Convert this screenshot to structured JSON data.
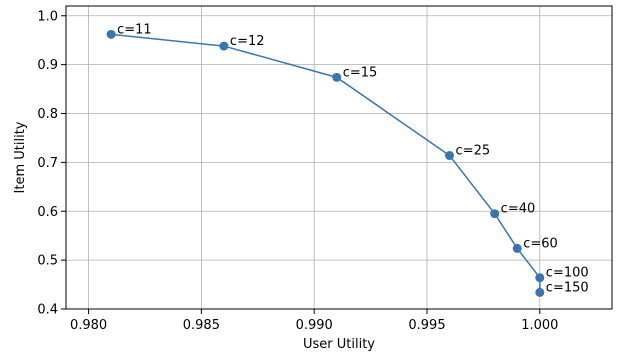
{
  "chart_data": {
    "type": "line",
    "title": "",
    "xlabel": "User Utility",
    "ylabel": "Item Utility",
    "xlim": [
      0.979,
      1.0032
    ],
    "ylim": [
      0.4,
      1.02
    ],
    "xticks": [
      0.98,
      0.985,
      0.99,
      0.995,
      1.0
    ],
    "xtick_labels": [
      "0.980",
      "0.985",
      "0.990",
      "0.995",
      "1.000"
    ],
    "yticks": [
      0.4,
      0.5,
      0.6,
      0.7,
      0.8,
      0.9,
      1.0
    ],
    "ytick_labels": [
      "0.4",
      "0.5",
      "0.6",
      "0.7",
      "0.8",
      "0.9",
      "1.0"
    ],
    "grid": true,
    "series": [
      {
        "color": "#3a75b0",
        "points": [
          {
            "x": 0.981,
            "y": 0.962,
            "label": "c=11"
          },
          {
            "x": 0.986,
            "y": 0.938,
            "label": "c=12"
          },
          {
            "x": 0.991,
            "y": 0.874,
            "label": "c=15"
          },
          {
            "x": 0.996,
            "y": 0.714,
            "label": "c=25"
          },
          {
            "x": 0.998,
            "y": 0.595,
            "label": "c=40"
          },
          {
            "x": 0.999,
            "y": 0.524,
            "label": "c=60"
          },
          {
            "x": 1.0,
            "y": 0.464,
            "label": "c=100"
          },
          {
            "x": 1.0,
            "y": 0.434,
            "label": "c=150"
          }
        ]
      }
    ]
  }
}
